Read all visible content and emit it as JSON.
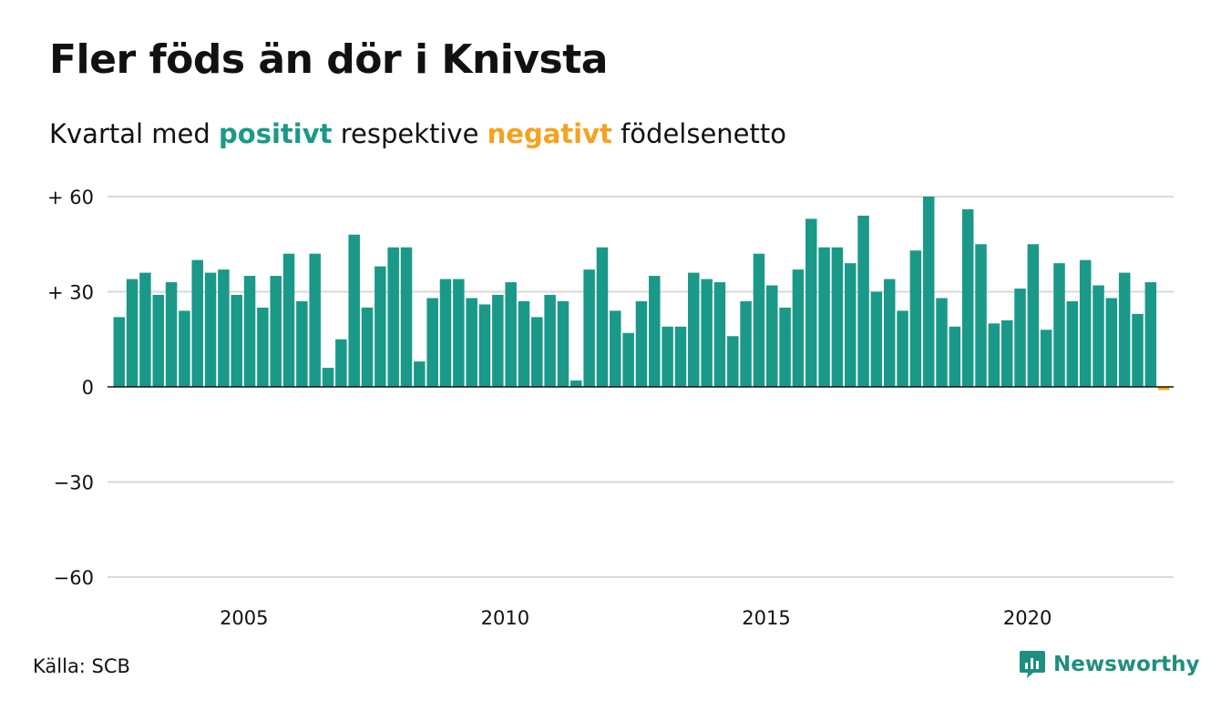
{
  "title": "Fler föds än dör i Knivsta",
  "subtitle": {
    "prefix": "Kvartal med",
    "positive": "positivt",
    "middle": "respektive",
    "negative": "negativt",
    "suffix": "födelsenetto"
  },
  "source": "Källa: SCB",
  "brand": "Newsworthy",
  "colors": {
    "positive": "#1a9988",
    "negative": "#f5a21f",
    "grid": "#d9d9d9",
    "axis": "#111111",
    "brand": "#1f8f7e"
  },
  "chart_data": {
    "type": "bar",
    "x_start": "2003 Q1",
    "x_ticks": [
      "2005",
      "2010",
      "2015",
      "2020"
    ],
    "y_ticks": [
      "+ 60",
      "+ 30",
      "0",
      "−30",
      "−60"
    ],
    "y_tick_values": [
      60,
      30,
      0,
      -30,
      -60
    ],
    "ylim": [
      -60,
      60
    ],
    "grid": true,
    "values": [
      22,
      34,
      36,
      29,
      33,
      24,
      40,
      36,
      37,
      29,
      35,
      25,
      35,
      42,
      27,
      42,
      6,
      15,
      48,
      25,
      38,
      44,
      44,
      8,
      28,
      34,
      34,
      28,
      26,
      29,
      33,
      27,
      22,
      29,
      27,
      2,
      37,
      44,
      24,
      17,
      27,
      35,
      19,
      19,
      36,
      34,
      33,
      16,
      27,
      42,
      32,
      25,
      37,
      53,
      44,
      44,
      39,
      54,
      30,
      34,
      24,
      43,
      60,
      28,
      19,
      56,
      45,
      20,
      21,
      31,
      45,
      18,
      39,
      27,
      40,
      32,
      28,
      36,
      23,
      33,
      -1
    ]
  }
}
